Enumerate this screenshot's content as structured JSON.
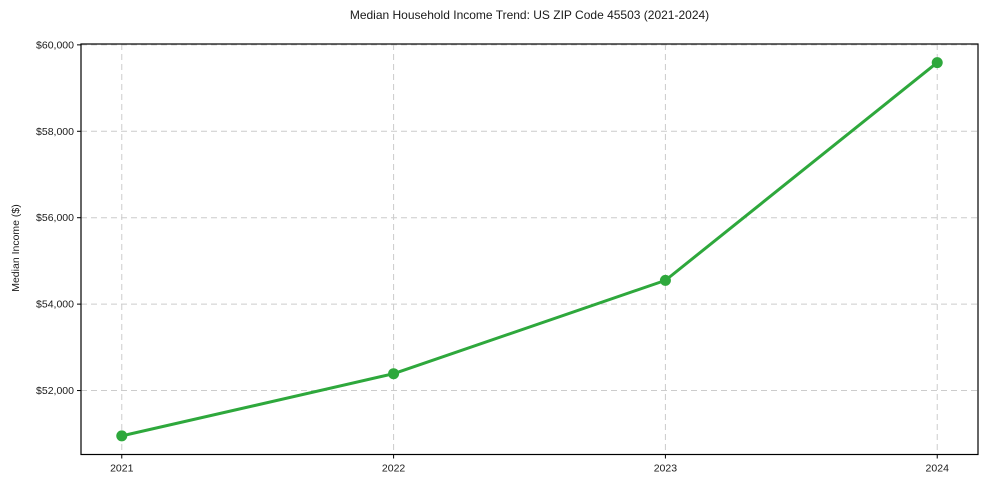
{
  "figure": {
    "background": "#ffffff",
    "text_color": "#1a1a1a",
    "spine_color": "#000000"
  },
  "chart_data": {
    "type": "line",
    "title": "Median Household Income Trend: US ZIP Code 45503 (2021-2024)",
    "xlabel": "",
    "ylabel": "Median Income ($)",
    "x": [
      2021,
      2022,
      2023,
      2024
    ],
    "series": [
      {
        "name": "Median Household Income",
        "values": [
          50950,
          52390,
          54550,
          59590
        ],
        "color": "#2ea83c",
        "line_width": 3,
        "marker": "circle",
        "marker_radius": 5.5
      }
    ],
    "x_tick_labels": [
      "2021",
      "2022",
      "2023",
      "2024"
    ],
    "y_ticks": [
      52000,
      54000,
      56000,
      58000,
      60000
    ],
    "y_tick_labels": [
      "$52,000",
      "$54,000",
      "$56,000",
      "$58,000",
      "$60,000"
    ],
    "xlim": [
      2020.85,
      2024.15
    ],
    "ylim": [
      50520,
      60020
    ],
    "grid": "dashed",
    "grid_color": "#cccccc",
    "legend": "none"
  }
}
